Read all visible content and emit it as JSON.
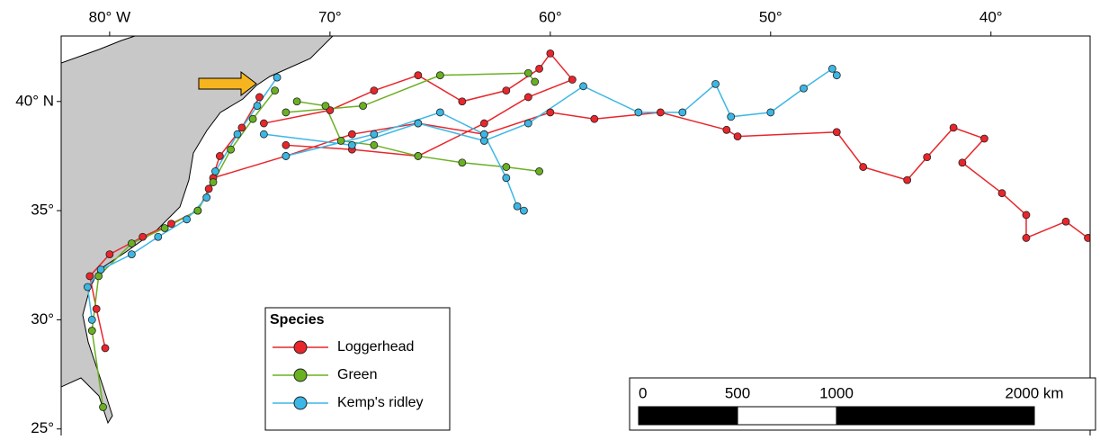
{
  "map": {
    "lonlim": [
      -82.2,
      -35.5
    ],
    "latlim": [
      24.7,
      43.0
    ],
    "lonticks": [
      {
        "value": -80,
        "label": "80° W"
      },
      {
        "value": -70,
        "label": "70°"
      },
      {
        "value": -60,
        "label": "60°"
      },
      {
        "value": -50,
        "label": "50°"
      },
      {
        "value": -40,
        "label": "40°"
      }
    ],
    "latticks": [
      {
        "value": 40,
        "label": "40° N"
      },
      {
        "value": 35,
        "label": "35°"
      },
      {
        "value": 30,
        "label": "30°"
      },
      {
        "value": 25,
        "label": "25°"
      }
    ],
    "legend_title": "Species",
    "species": [
      {
        "name": "Loggerhead",
        "color": "#e8262b",
        "tracks": [
          {
            "lon": [
              -80.2,
              -80.6,
              -80.9,
              -80.0,
              -78.5,
              -77.2,
              -76.0,
              -75.5,
              -75.0,
              -74.0,
              -73.2
            ],
            "lat": [
              28.7,
              30.5,
              32.0,
              33.0,
              33.8,
              34.4,
              35.0,
              36.0,
              37.5,
              38.8,
              40.2
            ]
          },
          {
            "lon": [
              -75.3,
              -72,
              -69,
              -66,
              -63,
              -60,
              -58,
              -55,
              -52,
              -51.5,
              -47.0,
              -45.8,
              -43.8,
              -42.9,
              -41.7,
              -40.3,
              -41.3,
              -39.5,
              -38.4,
              -38.4,
              -36.6,
              -35.6
            ],
            "lat": [
              36.5,
              37.5,
              38.5,
              39.0,
              38.5,
              39.5,
              39.2,
              39.5,
              38.7,
              38.4,
              38.6,
              37.0,
              36.4,
              37.45,
              38.8,
              38.3,
              37.2,
              35.8,
              34.8,
              33.75,
              34.5,
              33.75
            ]
          },
          {
            "lon": [
              -73,
              -70,
              -68,
              -66,
              -64,
              -62,
              -60.5,
              -60,
              -59,
              -61,
              -63,
              -66,
              -69,
              -72
            ],
            "lat": [
              39.0,
              39.6,
              40.5,
              41.2,
              40.0,
              40.5,
              41.5,
              42.2,
              41.0,
              40.2,
              39.0,
              37.5,
              37.8,
              38.0
            ]
          }
        ]
      },
      {
        "name": "Green",
        "color": "#6ab023",
        "tracks": [
          {
            "lon": [
              -80.3,
              -80.8,
              -80.5,
              -79,
              -77.5,
              -76,
              -75.3,
              -74.5,
              -73.5,
              -72.5
            ],
            "lat": [
              26.0,
              29.5,
              32.0,
              33.5,
              34.2,
              35.0,
              36.3,
              37.8,
              39.2,
              40.5
            ]
          },
          {
            "lon": [
              -71.5,
              -70.2,
              -69.5,
              -68,
              -66,
              -64,
              -62,
              -60.5
            ],
            "lat": [
              40.0,
              39.8,
              38.2,
              38.0,
              37.5,
              37.2,
              37.0,
              36.8
            ]
          },
          {
            "lon": [
              -72,
              -68.5,
              -65,
              -61,
              -60.7
            ],
            "lat": [
              39.5,
              39.8,
              41.2,
              41.3,
              40.9
            ]
          }
        ]
      },
      {
        "name": "Kemp's ridley",
        "color": "#3cb7e5",
        "tracks": [
          {
            "lon": [
              -80.8,
              -81.0,
              -80.4,
              -79.0,
              -77.8,
              -76.5,
              -75.6,
              -75.2,
              -74.2,
              -73.3,
              -72.4
            ],
            "lat": [
              30.0,
              31.5,
              32.3,
              33.0,
              33.8,
              34.6,
              35.6,
              36.8,
              38.5,
              39.8,
              41.1
            ]
          },
          {
            "lon": [
              -73,
              -69,
              -66,
              -63,
              -61,
              -58.5,
              -56,
              -54,
              -52.5,
              -51.8,
              -50,
              -48.5,
              -47.2,
              -47.0
            ],
            "lat": [
              38.5,
              38.0,
              39.0,
              38.2,
              39.0,
              40.7,
              39.5,
              39.5,
              40.8,
              39.3,
              39.5,
              40.6,
              41.5,
              41.2
            ]
          },
          {
            "lon": [
              -72,
              -68,
              -65,
              -63,
              -62,
              -61.5,
              -61.2
            ],
            "lat": [
              37.5,
              38.5,
              39.5,
              38.5,
              36.5,
              35.2,
              35.0
            ]
          }
        ]
      }
    ],
    "scale_bar": {
      "max": 2000,
      "ticks": [
        0,
        500,
        1000,
        {
          "value": 2000,
          "label": "2000 km"
        }
      ]
    }
  }
}
